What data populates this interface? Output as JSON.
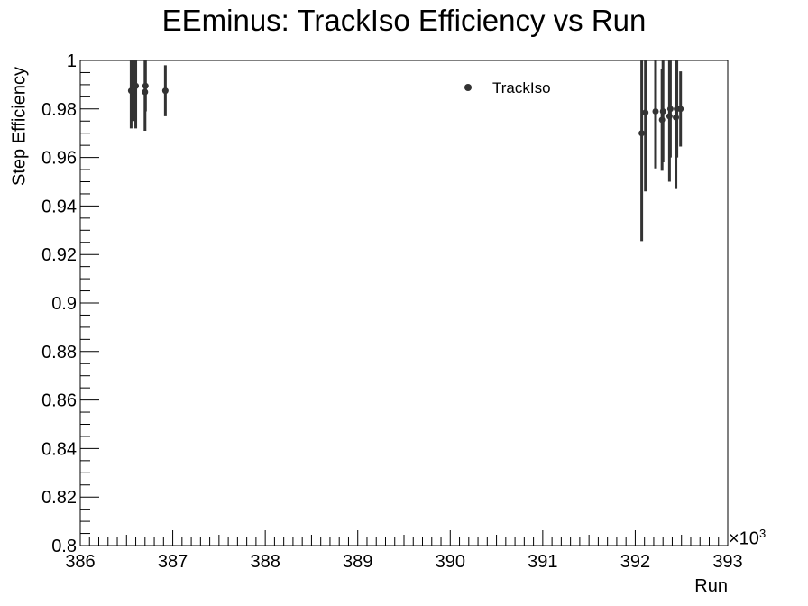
{
  "chart_data": {
    "type": "scatter",
    "title": "EEminus: TrackIso Efficiency vs Run",
    "xlabel": "Run",
    "ylabel": "Step Efficiency",
    "x_exponent": "×10",
    "x_exponent_power": "3",
    "xlim": [
      386,
      393
    ],
    "ylim": [
      0.8,
      1.0
    ],
    "x_ticks": [
      "386",
      "387",
      "388",
      "389",
      "390",
      "391",
      "392",
      "393"
    ],
    "y_ticks": [
      "0.8",
      "0.82",
      "0.84",
      "0.86",
      "0.88",
      "0.9",
      "0.92",
      "0.94",
      "0.96",
      "0.98",
      "1"
    ],
    "grid": false,
    "legend_position": "top-right",
    "series": [
      {
        "name": "TrackIso",
        "color": "#333333",
        "points": [
          {
            "x": 386.55,
            "y": 0.9875,
            "err": 0.0155
          },
          {
            "x": 386.575,
            "y": 0.9875,
            "err": 0.0125
          },
          {
            "x": 386.6,
            "y": 0.9895,
            "err": 0.0175
          },
          {
            "x": 386.7,
            "y": 0.987,
            "err": 0.016
          },
          {
            "x": 386.705,
            "y": 0.9895,
            "err": 0.0105
          },
          {
            "x": 386.92,
            "y": 0.9875,
            "err": 0.0105
          },
          {
            "x": 392.07,
            "y": 0.97,
            "err": 0.0445
          },
          {
            "x": 392.11,
            "y": 0.9785,
            "err": 0.0325
          },
          {
            "x": 392.22,
            "y": 0.979,
            "err": 0.0235
          },
          {
            "x": 392.29,
            "y": 0.9755,
            "err": 0.021
          },
          {
            "x": 392.3,
            "y": 0.979,
            "err": 0.021
          },
          {
            "x": 392.37,
            "y": 0.977,
            "err": 0.027
          },
          {
            "x": 392.38,
            "y": 0.98,
            "err": 0.02
          },
          {
            "x": 392.44,
            "y": 0.9765,
            "err": 0.0295
          },
          {
            "x": 392.45,
            "y": 0.98,
            "err": 0.02
          },
          {
            "x": 392.49,
            "y": 0.98,
            "err": 0.0155
          }
        ]
      }
    ]
  }
}
